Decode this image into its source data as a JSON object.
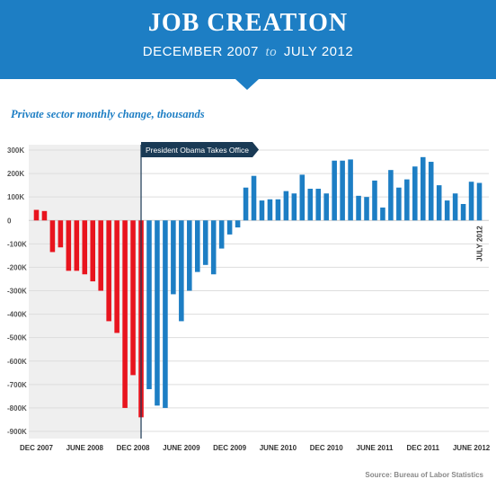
{
  "header": {
    "title": "JOB CREATION",
    "subtitle_start": "DECEMBER 2007",
    "subtitle_to": "to",
    "subtitle_end": "JULY 2012"
  },
  "source": "Source: Bureau of Labor Statistics",
  "colors": {
    "header": "#1d7ec4",
    "red": "#e8141e",
    "blue": "#1d7ec4",
    "shade": "#efefef"
  },
  "chart_data": {
    "type": "bar",
    "title": "Private sector monthly change, thousands",
    "ylim": [
      -900,
      300
    ],
    "y_ticks": [
      300,
      200,
      100,
      0,
      -100,
      -200,
      -300,
      -400,
      -500,
      -600,
      -700,
      -800,
      -900
    ],
    "y_tick_labels": [
      "300K",
      "200K",
      "100K",
      "0",
      "-100K",
      "-200K",
      "-300K",
      "-400K",
      "-500K",
      "-600K",
      "-700K",
      "-800K",
      "-900K"
    ],
    "x_tick_labels": [
      "DEC 2007",
      "JUNE 2008",
      "DEC 2008",
      "JUNE 2009",
      "DEC 2009",
      "JUNE 2010",
      "DEC 2010",
      "JUNE 2011",
      "DEC 2011",
      "JUNE 2012"
    ],
    "grid": true,
    "annotation": "President Obama Takes Office",
    "end_label": "JULY 2012",
    "categories": [
      "2007-12",
      "2008-01",
      "2008-02",
      "2008-03",
      "2008-04",
      "2008-05",
      "2008-06",
      "2008-07",
      "2008-08",
      "2008-09",
      "2008-10",
      "2008-11",
      "2008-12",
      "2009-01",
      "2009-02",
      "2009-03",
      "2009-04",
      "2009-05",
      "2009-06",
      "2009-07",
      "2009-08",
      "2009-09",
      "2009-10",
      "2009-11",
      "2009-12",
      "2010-01",
      "2010-02",
      "2010-03",
      "2010-04",
      "2010-05",
      "2010-06",
      "2010-07",
      "2010-08",
      "2010-09",
      "2010-10",
      "2010-11",
      "2010-12",
      "2011-01",
      "2011-02",
      "2011-03",
      "2011-04",
      "2011-05",
      "2011-06",
      "2011-07",
      "2011-08",
      "2011-09",
      "2011-10",
      "2011-11",
      "2011-12",
      "2012-01",
      "2012-02",
      "2012-03",
      "2012-04",
      "2012-05",
      "2012-06",
      "2012-07"
    ],
    "values": [
      45,
      40,
      -135,
      -115,
      -215,
      -215,
      -230,
      -260,
      -300,
      -430,
      -480,
      -800,
      -660,
      -840,
      -720,
      -790,
      -800,
      -315,
      -430,
      -300,
      -220,
      -190,
      -230,
      -120,
      -60,
      -30,
      140,
      190,
      85,
      90,
      90,
      125,
      115,
      195,
      135,
      135,
      115,
      255,
      255,
      260,
      105,
      100,
      170,
      55,
      215,
      140,
      175,
      230,
      270,
      250,
      150,
      85,
      115,
      70,
      165,
      160
    ],
    "bar_colors": [
      "red",
      "red",
      "red",
      "red",
      "red",
      "red",
      "red",
      "red",
      "red",
      "red",
      "red",
      "red",
      "red",
      "red",
      "blue",
      "blue",
      "blue",
      "blue",
      "blue",
      "blue",
      "blue",
      "blue",
      "blue",
      "blue",
      "blue",
      "blue",
      "blue",
      "blue",
      "blue",
      "blue",
      "blue",
      "blue",
      "blue",
      "blue",
      "blue",
      "blue",
      "blue",
      "blue",
      "blue",
      "blue",
      "blue",
      "blue",
      "blue",
      "blue",
      "blue",
      "blue",
      "blue",
      "blue",
      "blue",
      "blue",
      "blue",
      "blue",
      "blue",
      "blue",
      "blue",
      "blue"
    ]
  }
}
